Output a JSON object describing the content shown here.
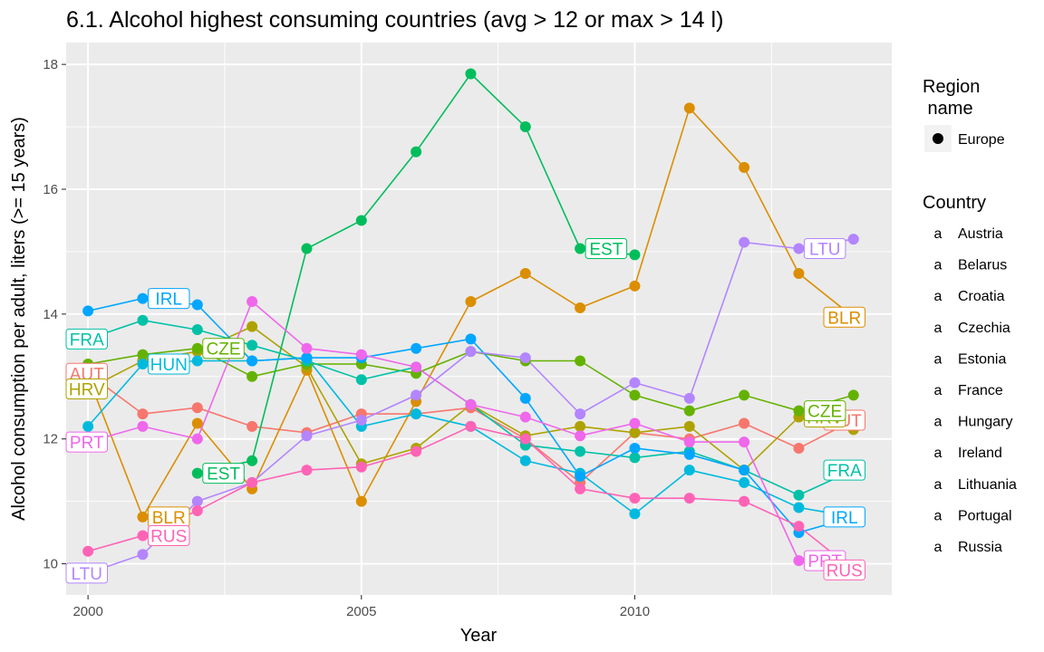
{
  "chart_data": {
    "type": "line",
    "title": "6.1. Alcohol highest consuming countries (avg > 12 or max > 14 l)",
    "xlabel": "Year",
    "ylabel": "Alcohol consumption per adult, liters (>= 15 years)",
    "xlim": [
      1999.6,
      2014.7
    ],
    "ylim": [
      9.5,
      18.35
    ],
    "x_ticks": [
      2000,
      2005,
      2010
    ],
    "x_tick_labels": [
      "2000",
      "2005",
      "2010"
    ],
    "y_ticks": [
      10,
      12,
      14,
      16,
      18
    ],
    "y_tick_labels": [
      "10",
      "12",
      "14",
      "16",
      "18"
    ],
    "grid": true,
    "legend_position": "right",
    "legend": {
      "shape_title_line1": "Region",
      "shape_title_line2": " name",
      "shape_entries": [
        "Europe"
      ],
      "color_title": "Country",
      "color_glyph": "a"
    },
    "x": [
      2000,
      2001,
      2002,
      2003,
      2004,
      2005,
      2006,
      2007,
      2008,
      2009,
      2010,
      2011,
      2012,
      2013,
      2014
    ],
    "series": [
      {
        "name": "Austria",
        "color": "#F8766D",
        "values": [
          13.05,
          12.4,
          12.5,
          12.2,
          12.1,
          12.4,
          12.4,
          12.5,
          12.0,
          11.3,
          12.1,
          12.0,
          12.25,
          11.85,
          12.3
        ],
        "labels": [
          {
            "text": "AUT",
            "i": 0
          },
          {
            "text": "AUT",
            "i": 14
          }
        ]
      },
      {
        "name": "Belarus",
        "color": "#DB8E00",
        "values": [
          13.0,
          10.75,
          12.25,
          11.2,
          13.1,
          11.0,
          12.6,
          14.2,
          14.65,
          14.1,
          14.45,
          17.3,
          16.35,
          14.65,
          13.95
        ],
        "labels": [
          {
            "text": "BLR",
            "i": 1
          },
          {
            "text": "BLR",
            "i": 14
          }
        ]
      },
      {
        "name": "Croatia",
        "color": "#AEA200",
        "values": [
          12.8,
          13.25,
          13.4,
          13.8,
          13.15,
          11.6,
          11.85,
          12.55,
          12.05,
          12.2,
          12.1,
          12.2,
          11.5,
          12.35,
          12.15
        ],
        "labels": [
          {
            "text": "HRV",
            "i": 0
          },
          {
            "text": "HRV",
            "i": 13
          }
        ]
      },
      {
        "name": "Czechia",
        "color": "#64B200",
        "values": [
          13.2,
          13.35,
          13.45,
          13.0,
          13.2,
          13.2,
          13.05,
          13.4,
          13.25,
          13.25,
          12.7,
          12.45,
          12.7,
          12.45,
          12.7
        ],
        "labels": [
          {
            "text": "CZE",
            "i": 2
          },
          {
            "text": "CZE",
            "i": 13
          }
        ]
      },
      {
        "name": "Estonia",
        "color": "#00BD5C",
        "values": [
          null,
          null,
          11.45,
          11.65,
          15.05,
          15.5,
          16.6,
          17.85,
          17.0,
          15.05,
          14.95,
          null,
          null,
          null,
          null
        ],
        "labels": [
          {
            "text": "EST",
            "i": 2
          },
          {
            "text": "EST",
            "i": 9
          }
        ]
      },
      {
        "name": "France",
        "color": "#00C1A7",
        "values": [
          13.6,
          13.9,
          13.75,
          13.5,
          13.25,
          12.95,
          13.15,
          12.55,
          11.9,
          11.8,
          11.7,
          11.8,
          11.5,
          11.1,
          11.5
        ],
        "labels": [
          {
            "text": "FRA",
            "i": 0
          },
          {
            "text": "FRA",
            "i": 14
          }
        ]
      },
      {
        "name": "Hungary",
        "color": "#00BADE",
        "values": [
          12.2,
          13.2,
          13.25,
          13.25,
          13.3,
          12.2,
          12.4,
          12.2,
          11.65,
          11.45,
          10.8,
          11.5,
          11.3,
          10.9,
          10.75
        ],
        "labels": [
          {
            "text": "HUN",
            "i": 1
          }
        ]
      },
      {
        "name": "Ireland",
        "color": "#00A6FF",
        "values": [
          14.05,
          14.25,
          14.15,
          13.25,
          13.3,
          13.3,
          13.45,
          13.6,
          12.65,
          11.4,
          11.85,
          11.75,
          11.5,
          10.5,
          10.75
        ],
        "labels": [
          {
            "text": "IRL",
            "i": 1
          },
          {
            "text": "IRL",
            "i": 14
          }
        ]
      },
      {
        "name": "Lithuania",
        "color": "#B385FF",
        "values": [
          9.85,
          10.15,
          11.0,
          11.3,
          12.05,
          12.3,
          12.7,
          13.4,
          13.3,
          12.4,
          12.9,
          12.65,
          15.15,
          15.05,
          15.2
        ],
        "labels": [
          {
            "text": "LTU",
            "i": 0
          },
          {
            "text": "LTU",
            "i": 13
          }
        ]
      },
      {
        "name": "Portugal",
        "color": "#EF67EB",
        "values": [
          11.95,
          12.2,
          12.0,
          14.2,
          13.45,
          13.35,
          13.15,
          12.55,
          12.35,
          12.05,
          12.25,
          11.95,
          11.95,
          10.05,
          9.9
        ],
        "labels": [
          {
            "text": "PRT",
            "i": 0
          },
          {
            "text": "PRT",
            "i": 13
          }
        ]
      },
      {
        "name": "Russia",
        "color": "#FF63B6",
        "values": [
          10.2,
          10.45,
          10.85,
          11.3,
          11.5,
          11.55,
          11.8,
          12.2,
          12.0,
          11.2,
          11.05,
          11.05,
          11.0,
          10.6,
          9.9
        ],
        "labels": [
          {
            "text": "RUS",
            "i": 1
          },
          {
            "text": "RUS",
            "i": 14
          }
        ]
      }
    ]
  }
}
